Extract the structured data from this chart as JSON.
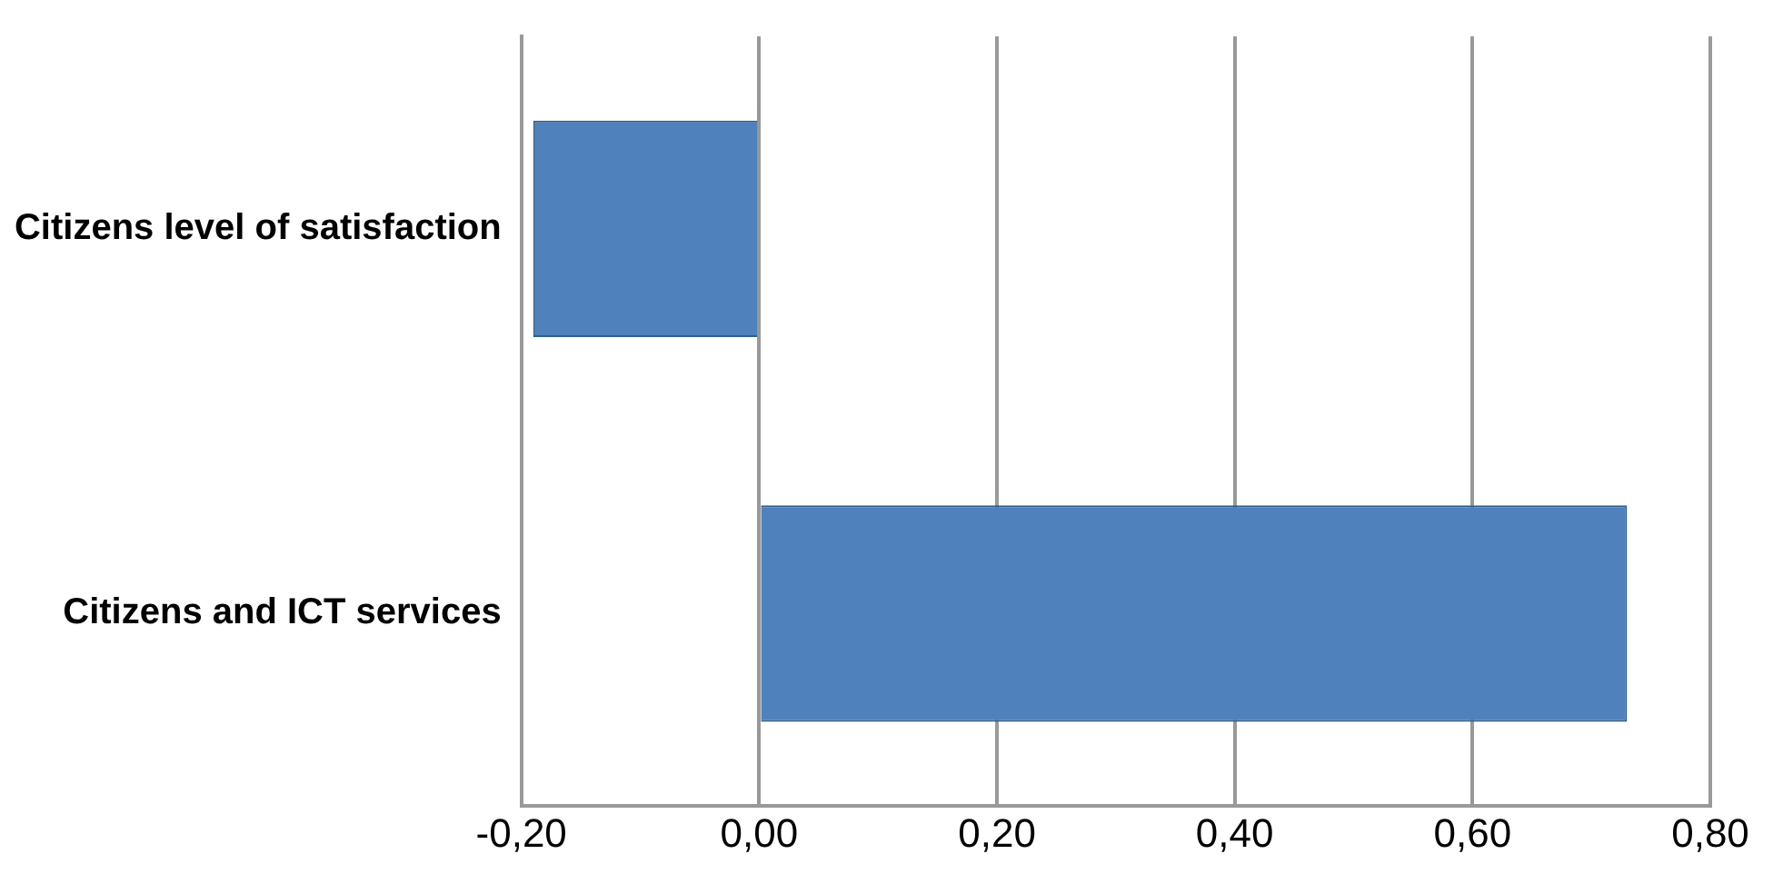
{
  "chart_data": {
    "type": "bar",
    "orientation": "horizontal",
    "categories": [
      "Citizens level of satisfaction",
      "Citizens and ICT services"
    ],
    "values": [
      -0.19,
      0.73
    ],
    "color": "#4f81bd",
    "xlim": [
      -0.2,
      0.8
    ],
    "xticks": [
      {
        "value": -0.2,
        "label": "-0,20"
      },
      {
        "value": 0,
        "label": "0,00"
      },
      {
        "value": 0.2,
        "label": "0,20"
      },
      {
        "value": 0.4,
        "label": "0,40"
      },
      {
        "value": 0.6,
        "label": "0,60"
      },
      {
        "value": 0.8,
        "label": "0,80"
      }
    ],
    "grid": "x",
    "legend": false
  }
}
